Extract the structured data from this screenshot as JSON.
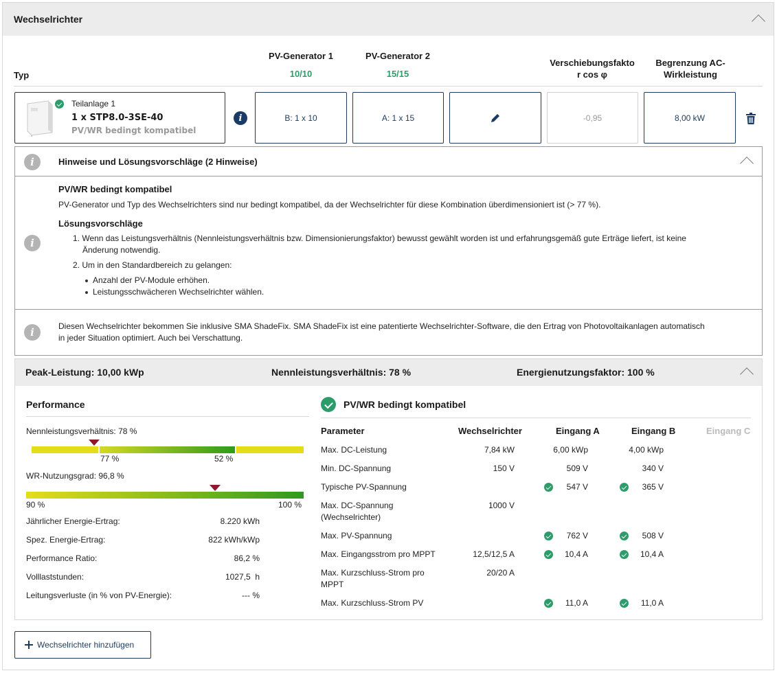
{
  "header": {
    "title": "Wechselrichter"
  },
  "columns": {
    "typ": "Typ",
    "pv1_title": "PV-Generator 1",
    "pv1_value": "10/10",
    "pv2_title": "PV-Generator 2",
    "pv2_value": "15/15",
    "cosphi_l1": "Verschiebungsfakto",
    "cosphi_l2": "r cos φ",
    "ac_l1": "Begrenzung AC-",
    "ac_l2": "Wirkleistung"
  },
  "inverter": {
    "subsystem": "Teilanlage 1",
    "model": "1 x STP8.0-3SE-40",
    "compat": "PV/WR bedingt kompatibel",
    "pv1": "B: 1 x 10",
    "pv2": "A: 1 x 15",
    "cosphi": "-0,95",
    "ac_limit": "8,00 kW"
  },
  "notes": {
    "title": "Hinweise und Lösungsvorschläge (2 Hinweise)",
    "n1_title": "PV/WR bedingt kompatibel",
    "n1_text": "PV-Generator und Typ des Wechselrichters sind nur bedingt kompatibel, da der Wechselrichter für diese Kombination überdimensioniert ist (> 77 %).",
    "n1_sol_title": "Lösungsvorschläge",
    "n1_sol1_l1": "1. Wenn das Leistungsverhältnis (Nennleistungsverhältnis bzw. Dimensionierungsfaktor) bewusst gewählt worden ist und erfahrungsgemäß gute Erträge liefert, ist keine",
    "n1_sol1_l2": "Änderung notwendig.",
    "n1_sol2": "2. Um in den Standardbereich zu gelangen:",
    "n1_b1": "Anzahl der PV-Module erhöhen.",
    "n1_b2": "Leistungsschwächeren Wechselrichter wählen.",
    "n2_l1": "Diesen Wechselrichter bekommen Sie inklusive SMA ShadeFix. SMA ShadeFix ist eine patentierte Wechselrichter-Software, die den Ertrag von Photovoltaikanlagen automatisch",
    "n2_l2": "in jeder Situation optimiert. Auch bei Verschattung."
  },
  "summary": {
    "peak": "Peak-Leistung: 10,00 kWp",
    "ratio": "Nennleistungsverhältnis: 78 %",
    "usage": "Energienutzungsfaktor: 100 %"
  },
  "performance": {
    "title": "Performance",
    "nlv_label": "Nennleistungsverhältnis: 78 %",
    "nlv_pos": 0.23,
    "nlv_t1": "77 %",
    "nlv_t2": "52 %",
    "wr_label": "WR-Nutzungsgrad: 96,8 %",
    "wr_pos": 0.68,
    "wr_min": "90 %",
    "wr_max": "100 %",
    "rows": [
      {
        "label": "Jährlicher Energie-Ertrag:",
        "value": "8.220 kWh"
      },
      {
        "label": "Spez. Energie-Ertrag:",
        "value": "822 kWh/kWp"
      },
      {
        "label": "Performance Ratio:",
        "value": "86,2 %"
      },
      {
        "label": "Volllaststunden:",
        "value": "1027,5  h"
      },
      {
        "label": "Leitungsverluste (in % von PV-Energie):",
        "value": "--- %"
      }
    ]
  },
  "compat": {
    "title": "PV/WR bedingt kompatibel",
    "h_param": "Parameter",
    "h_wr": "Wechselrichter",
    "h_a": "Eingang A",
    "h_b": "Eingang B",
    "h_c": "Eingang C",
    "rows": [
      {
        "p1": "Max. DC-Leistung",
        "p2": "",
        "wr": "7,84 kW",
        "a": "6,00 kWp",
        "b": "4,00 kWp",
        "ca": false,
        "cb": false
      },
      {
        "p1": "Min. DC-Spannung",
        "p2": "",
        "wr": "150 V",
        "a": "509 V",
        "b": "340 V",
        "ca": false,
        "cb": false
      },
      {
        "p1": "Typische PV-Spannung",
        "p2": "",
        "wr": "",
        "a": "547 V",
        "b": "365 V",
        "ca": true,
        "cb": true
      },
      {
        "p1": "Max. DC-Spannung",
        "p2": "(Wechselrichter)",
        "wr": "1000 V",
        "a": "",
        "b": "",
        "ca": false,
        "cb": false
      },
      {
        "p1": "Max. PV-Spannung",
        "p2": "",
        "wr": "",
        "a": "762 V",
        "b": "508 V",
        "ca": true,
        "cb": true
      },
      {
        "p1": "Max. Eingangsstrom pro MPPT",
        "p2": "",
        "wr": "12,5/12,5 A",
        "a": "10,4 A",
        "b": "10,4 A",
        "ca": true,
        "cb": true
      },
      {
        "p1": "Max. Kurzschluss-Strom pro",
        "p2": "MPPT",
        "wr": "20/20 A",
        "a": "",
        "b": "",
        "ca": false,
        "cb": false
      },
      {
        "p1": "Max. Kurzschluss-Strom PV",
        "p2": "",
        "wr": "",
        "a": "11,0 A",
        "b": "11,0 A",
        "ca": true,
        "cb": true
      }
    ]
  },
  "add_button": "Wechselrichter hinzufügen"
}
